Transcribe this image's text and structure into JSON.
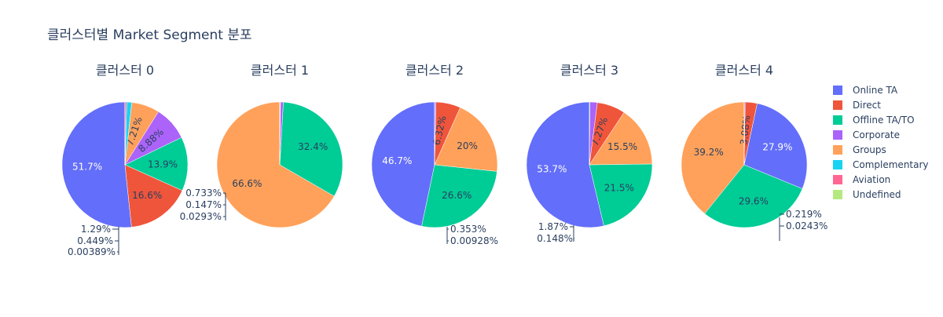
{
  "chart_data": {
    "type": "pie",
    "title": "클러스터별 Market Segment 분포",
    "legend": {
      "placement": "right",
      "entries": [
        "Online TA",
        "Direct",
        "Offline TA/TO",
        "Corporate",
        "Groups",
        "Complementary",
        "Aviation",
        "Undefined"
      ]
    },
    "colors": {
      "Online TA": "#636efa",
      "Direct": "#ef553b",
      "Offline TA/TO": "#00cc96",
      "Corporate": "#ab63fa",
      "Groups": "#ffa15a",
      "Complementary": "#19d3f3",
      "Aviation": "#ff6692",
      "Undefined": "#b6e880"
    },
    "pies": [
      {
        "title": "클러스터 0",
        "slices": [
          {
            "category": "Online TA",
            "value": 51.7,
            "label": "51.7%"
          },
          {
            "category": "Direct",
            "value": 16.6,
            "label": "16.6%"
          },
          {
            "category": "Offline TA/TO",
            "value": 13.9,
            "label": "13.9%"
          },
          {
            "category": "Corporate",
            "value": 8.88,
            "label": "8.88%"
          },
          {
            "category": "Groups",
            "value": 7.21,
            "label": "7.21%"
          },
          {
            "category": "Complementary",
            "value": 1.29,
            "label": "1.29%"
          },
          {
            "category": "Aviation",
            "value": 0.449,
            "label": "0.449%"
          },
          {
            "category": "Undefined",
            "value": 0.00389,
            "label": "0.00389%"
          }
        ]
      },
      {
        "title": "클러스터 1",
        "slices": [
          {
            "category": "Groups",
            "value": 66.6,
            "label": "66.6%"
          },
          {
            "category": "Offline TA/TO",
            "value": 32.4,
            "label": "32.4%"
          },
          {
            "category": "Corporate",
            "value": 0.733,
            "label": "0.733%"
          },
          {
            "category": "Direct",
            "value": 0.147,
            "label": "0.147%"
          },
          {
            "category": "Online TA",
            "value": 0.0293,
            "label": "0.0293%"
          }
        ]
      },
      {
        "title": "클러스터 2",
        "slices": [
          {
            "category": "Online TA",
            "value": 46.7,
            "label": "46.7%"
          },
          {
            "category": "Offline TA/TO",
            "value": 26.6,
            "label": "26.6%"
          },
          {
            "category": "Groups",
            "value": 20,
            "label": "20%"
          },
          {
            "category": "Direct",
            "value": 6.32,
            "label": "6.32%"
          },
          {
            "category": "Corporate",
            "value": 0.353,
            "label": "0.353%"
          },
          {
            "category": "Complementary",
            "value": 0.00928,
            "label": "0.00928%"
          }
        ]
      },
      {
        "title": "클러스터 3",
        "slices": [
          {
            "category": "Online TA",
            "value": 53.7,
            "label": "53.7%"
          },
          {
            "category": "Offline TA/TO",
            "value": 21.5,
            "label": "21.5%"
          },
          {
            "category": "Groups",
            "value": 15.5,
            "label": "15.5%"
          },
          {
            "category": "Direct",
            "value": 7.27,
            "label": "7.27%"
          },
          {
            "category": "Corporate",
            "value": 1.87,
            "label": "1.87%"
          },
          {
            "category": "Complementary",
            "value": 0.148,
            "label": "0.148%"
          }
        ]
      },
      {
        "title": "클러스터 4",
        "slices": [
          {
            "category": "Groups",
            "value": 39.2,
            "label": "39.2%"
          },
          {
            "category": "Offline TA/TO",
            "value": 29.6,
            "label": "29.6%"
          },
          {
            "category": "Online TA",
            "value": 27.9,
            "label": "27.9%"
          },
          {
            "category": "Direct",
            "value": 3.08,
            "label": "3.08%"
          },
          {
            "category": "Corporate",
            "value": 0.219,
            "label": "0.219%"
          },
          {
            "category": "Complementary",
            "value": 0.0243,
            "label": "0.0243%"
          }
        ]
      }
    ]
  }
}
